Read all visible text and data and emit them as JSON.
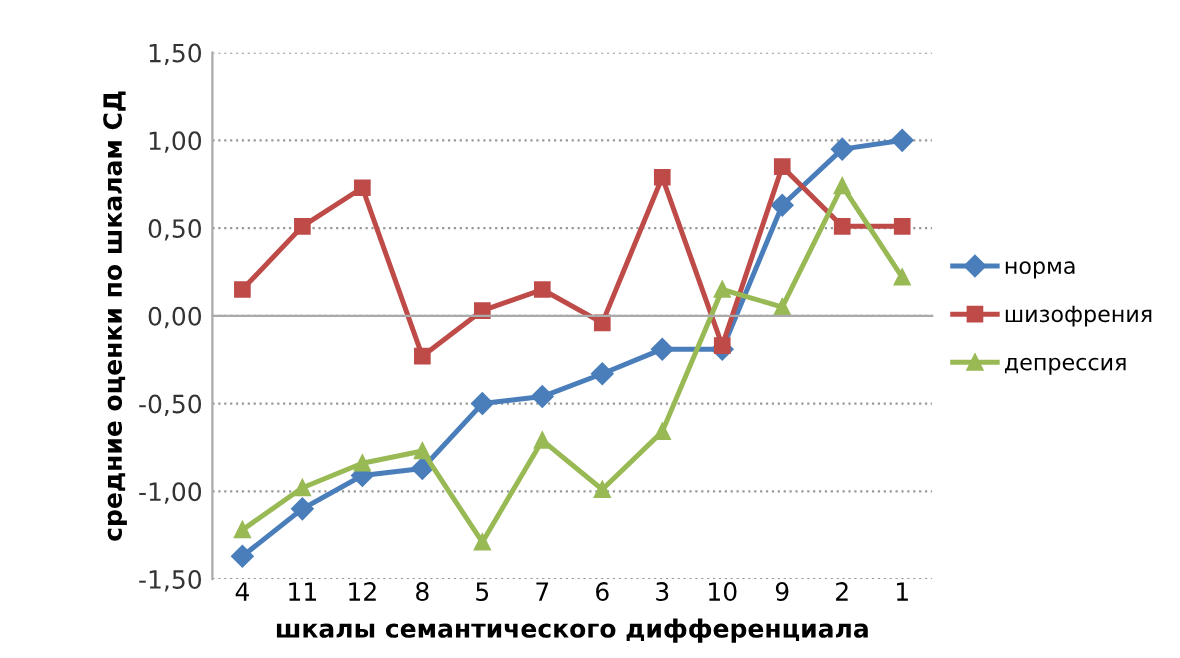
{
  "chart_data": {
    "type": "line",
    "xlabel": "шкалы семантического дифференциала",
    "ylabel": "средние оценки по шкалам СД",
    "categories": [
      "4",
      "11",
      "12",
      "8",
      "5",
      "7",
      "6",
      "3",
      "10",
      "9",
      "2",
      "1"
    ],
    "series": [
      {
        "name": "норма",
        "color": "#4a7ebb",
        "marker": "diamond",
        "values": [
          -1.37,
          -1.1,
          -0.91,
          -0.87,
          -0.5,
          -0.46,
          -0.33,
          -0.19,
          -0.19,
          0.63,
          0.95,
          1.0
        ]
      },
      {
        "name": "шизофрения",
        "color": "#be4b48",
        "marker": "square",
        "values": [
          0.15,
          0.51,
          0.73,
          -0.23,
          0.03,
          0.15,
          -0.04,
          0.79,
          -0.17,
          0.85,
          0.51,
          0.51
        ]
      },
      {
        "name": "депрессия",
        "color": "#98b954",
        "marker": "triangle",
        "values": [
          -1.22,
          -0.98,
          -0.84,
          -0.77,
          -1.29,
          -0.71,
          -0.99,
          -0.66,
          0.15,
          0.05,
          0.74,
          0.22
        ]
      }
    ],
    "ylim": [
      -1.5,
      1.5
    ],
    "yticks": [
      {
        "value": -1.5,
        "label": "-1,50"
      },
      {
        "value": -1.0,
        "label": "-1,00"
      },
      {
        "value": -0.5,
        "label": "-0,50"
      },
      {
        "value": 0,
        "label": "0,00"
      },
      {
        "value": 0.5,
        "label": "0,50"
      },
      {
        "value": 1.0,
        "label": "1,00"
      },
      {
        "value": 1.5,
        "label": "1,50"
      }
    ],
    "grid": "y",
    "legend": "right",
    "line_style": "solid"
  }
}
